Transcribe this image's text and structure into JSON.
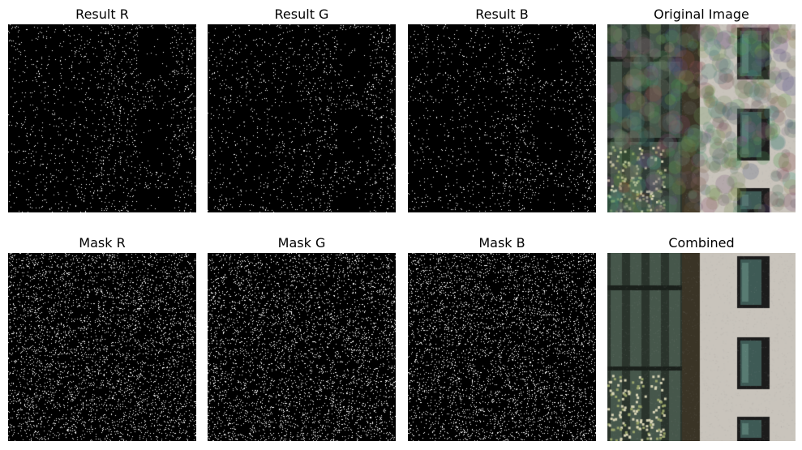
{
  "panels": [
    {
      "id": "result-r",
      "title": "Result R",
      "kind": "result",
      "channel": "r"
    },
    {
      "id": "result-g",
      "title": "Result G",
      "kind": "result",
      "channel": "g"
    },
    {
      "id": "result-b",
      "title": "Result B",
      "kind": "result",
      "channel": "b"
    },
    {
      "id": "original",
      "title": "Original Image",
      "kind": "original"
    },
    {
      "id": "mask-r",
      "title": "Mask R",
      "kind": "mask",
      "channel": "r"
    },
    {
      "id": "mask-g",
      "title": "Mask G",
      "kind": "mask",
      "channel": "g"
    },
    {
      "id": "mask-b",
      "title": "Mask B",
      "kind": "mask",
      "channel": "b"
    },
    {
      "id": "combined",
      "title": "Combined",
      "kind": "combined"
    }
  ],
  "colors": {
    "background": "#ffffff",
    "noise_background": "#000000",
    "noise_dot": "#ffffff",
    "wall": "#c9c4bc",
    "glass_dark": "#2a342c",
    "glass_mid": "#46574b",
    "window_frame": "#1c1c1c",
    "window_glass": "#3e5a55",
    "tree_leaf": "#9aa56a",
    "ground": "#55504a"
  },
  "noise_density": {
    "result": 0.12,
    "mask": 0.22
  }
}
